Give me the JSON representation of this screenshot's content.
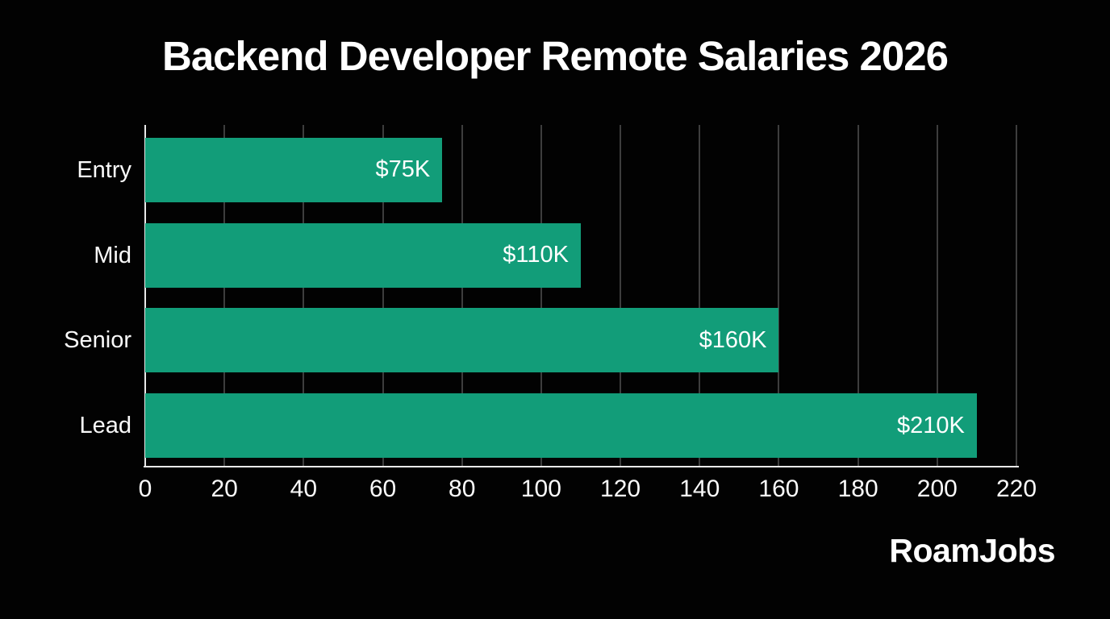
{
  "title": "Backend Developer Remote Salaries 2026",
  "brand": "RoamJobs",
  "colors": {
    "background": "#020202",
    "bar": "#129d79",
    "gridline": "#3d3d3d",
    "axis": "#e9e9e9",
    "text": "#ffffff"
  },
  "chart_data": {
    "type": "bar",
    "orientation": "horizontal",
    "title": "Backend Developer Remote Salaries 2026",
    "categories": [
      "Entry",
      "Mid",
      "Senior",
      "Lead"
    ],
    "values": [
      75,
      110,
      160,
      210
    ],
    "value_labels": [
      "$75K",
      "$110K",
      "$160K",
      "$210K"
    ],
    "unit": "K USD",
    "xlabel": "",
    "ylabel": "",
    "xlim": [
      0,
      220
    ],
    "x_ticks": [
      0,
      20,
      40,
      60,
      80,
      100,
      120,
      140,
      160,
      180,
      200,
      220
    ],
    "grid": true,
    "legend": false,
    "bar_color": "#129d79"
  }
}
